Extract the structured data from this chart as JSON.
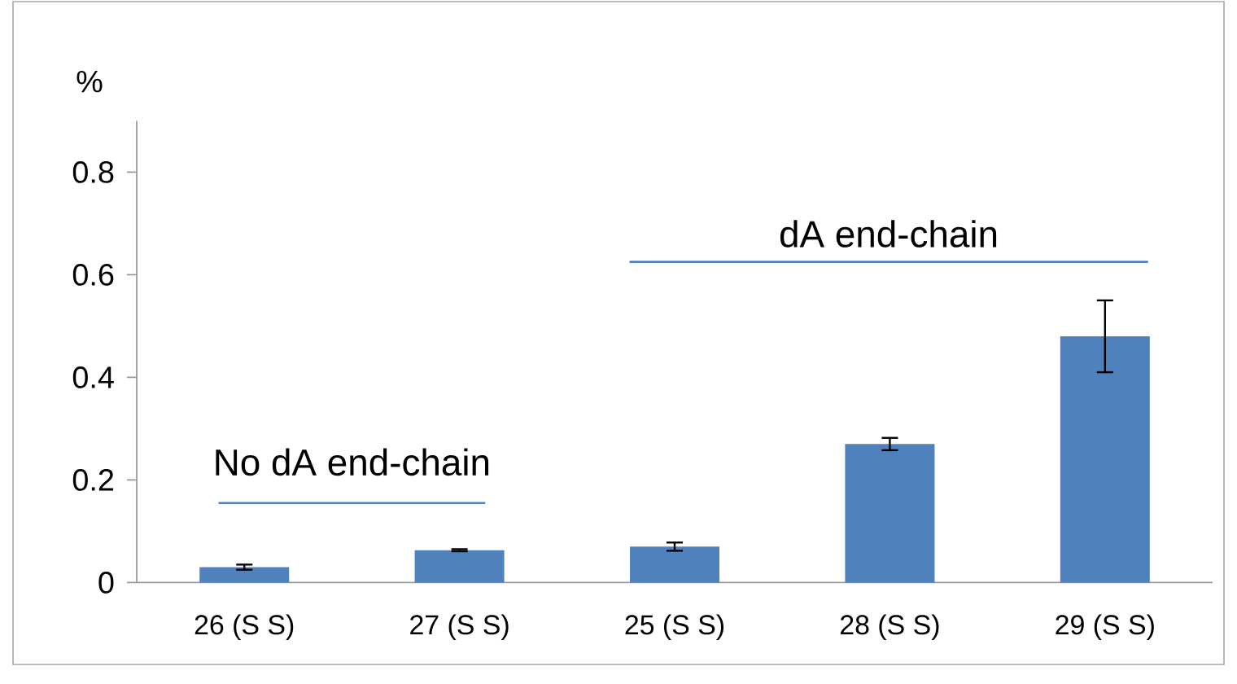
{
  "chart_data": {
    "type": "bar",
    "ylabel": "%",
    "categories": [
      "26 (S S)",
      "27 (S S)",
      "25 (S S)",
      "28 (S S)",
      "29 (S S)"
    ],
    "values": [
      0.03,
      0.063,
      0.07,
      0.27,
      0.48
    ],
    "errors": [
      0.005,
      0.002,
      0.008,
      0.012,
      0.07
    ],
    "color": "#4f81bd",
    "ylim": [
      0,
      0.9
    ],
    "yticks": [
      0,
      0.2,
      0.4,
      0.6,
      0.8
    ],
    "ref_lines": [
      {
        "axis": "y",
        "value": 0.155,
        "label": "No dA end-chain",
        "color": "#4f81bd"
      },
      {
        "axis": "y",
        "value": 0.625,
        "label": "dA end-chain",
        "color": "#4f81bd"
      }
    ],
    "grid": false
  }
}
